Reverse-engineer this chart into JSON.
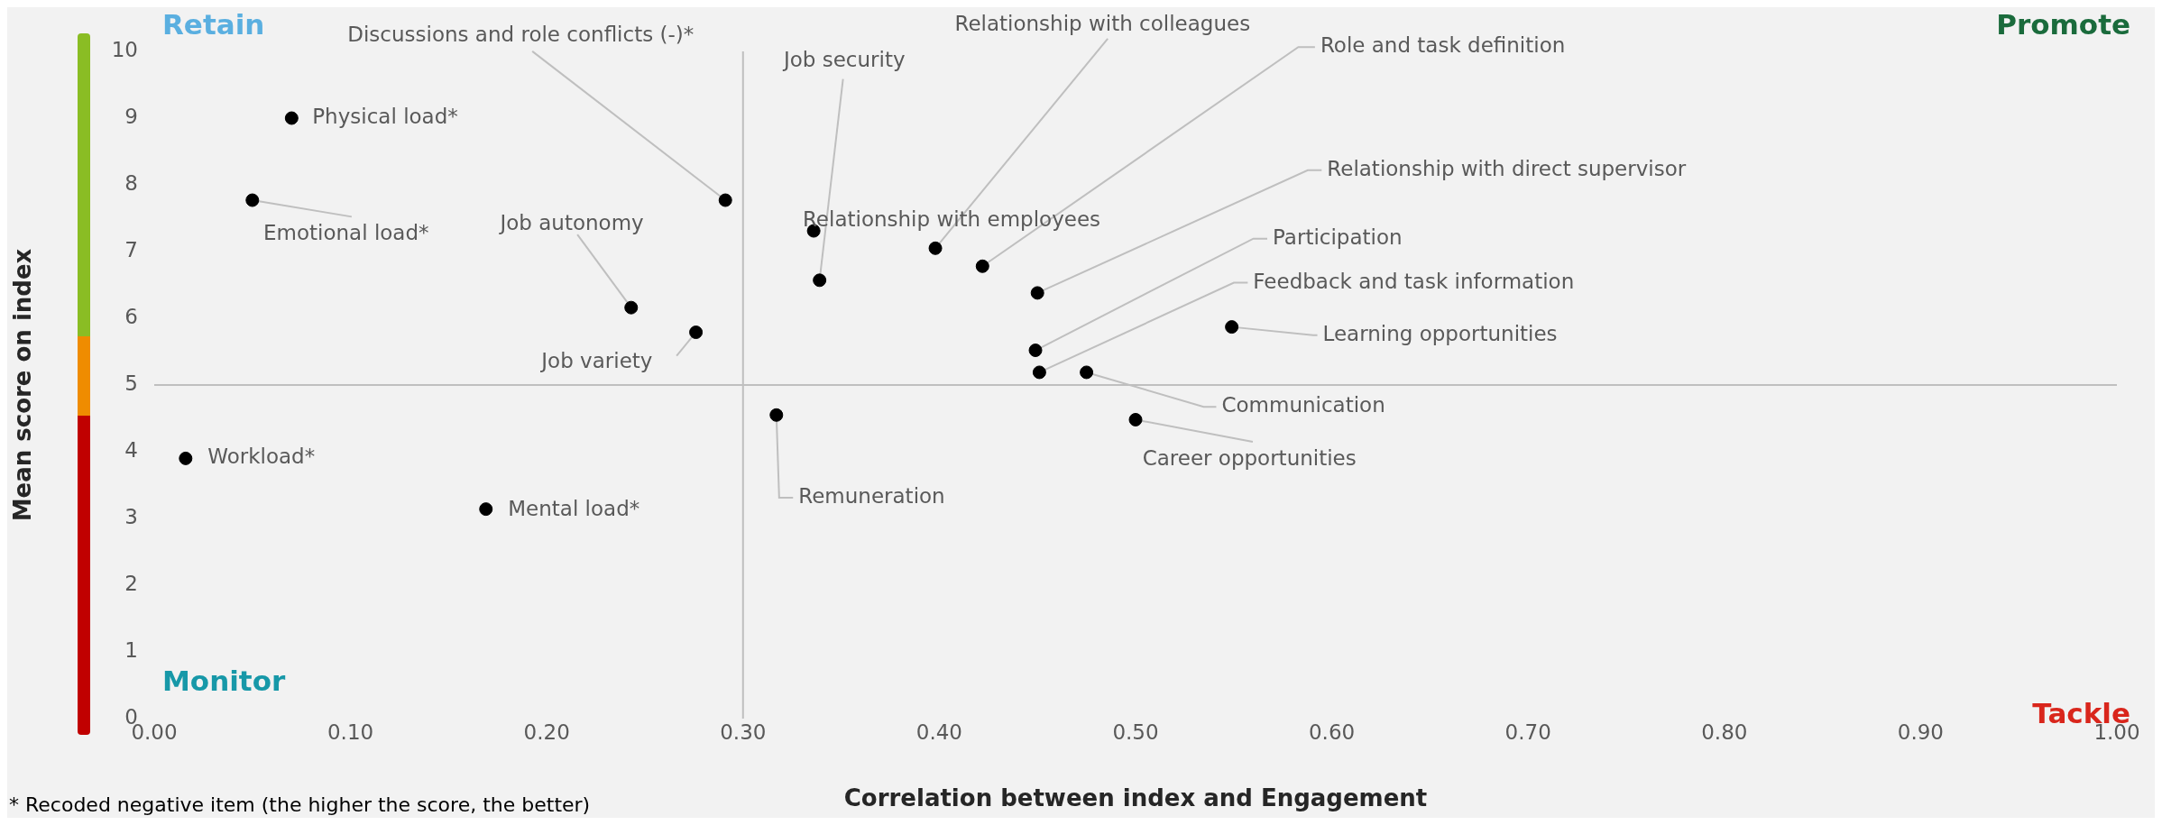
{
  "chart_data": {
    "type": "scatter",
    "xlabel": "Correlation between index and Engagement",
    "ylabel": "Mean score on index",
    "x": [
      0.07,
      0.05,
      0.291,
      0.243,
      0.276,
      0.016,
      0.169,
      0.317,
      0.336,
      0.339,
      0.398,
      0.422,
      0.45,
      0.449,
      0.451,
      0.475,
      0.5,
      0.549
    ],
    "series": [
      {
        "color": "#000000",
        "values": [
          9.0,
          7.77,
          7.77,
          6.16,
          5.79,
          3.9,
          3.14,
          4.55,
          7.31,
          6.57,
          7.05,
          6.78,
          6.38,
          5.52,
          5.19,
          5.19,
          4.48,
          5.87
        ]
      }
    ],
    "marker": "circle",
    "grid": false,
    "legend": false,
    "xlim": [
      0,
      1
    ],
    "xticks": [
      {
        "value": 0,
        "label": "0.00"
      },
      {
        "value": 0.1,
        "label": "0.10"
      },
      {
        "value": 0.2,
        "label": "0.20"
      },
      {
        "value": 0.3,
        "label": "0.30"
      },
      {
        "value": 0.4,
        "label": "0.40"
      },
      {
        "value": 0.5,
        "label": "0.50"
      },
      {
        "value": 0.6,
        "label": "0.60"
      },
      {
        "value": 0.7,
        "label": "0.70"
      },
      {
        "value": 0.8,
        "label": "0.80"
      },
      {
        "value": 0.9,
        "label": "0.90"
      },
      {
        "value": 1,
        "label": "1.00"
      }
    ],
    "ylim": [
      0,
      10
    ],
    "yticks": [
      0,
      1,
      2,
      3,
      4,
      5,
      6,
      7,
      8,
      9,
      10
    ],
    "ref_lines": [
      {
        "axis": "x",
        "value": 0.3,
        "color": "#bfbfbf"
      },
      {
        "axis": "y",
        "value": 5,
        "color": "#bfbfbf"
      }
    ],
    "annotations": [
      "Retain",
      "Promote",
      "Monitor",
      "Tackle",
      "* Recoded negative item (the higher the score, the better)",
      {
        "text": "Physical load*",
        "x": 0.07,
        "y": 9.0
      },
      {
        "text": "Emotional load*",
        "x": 0.05,
        "y": 7.77
      },
      {
        "text": "Discussions and role conflicts (-)*",
        "x": 0.291,
        "y": 7.77
      },
      {
        "text": "Job autonomy",
        "x": 0.243,
        "y": 6.16
      },
      {
        "text": "Job variety",
        "x": 0.276,
        "y": 5.79
      },
      {
        "text": "Workload*",
        "x": 0.016,
        "y": 3.9
      },
      {
        "text": "Mental load*",
        "x": 0.169,
        "y": 3.14
      },
      {
        "text": "Remuneration",
        "x": 0.317,
        "y": 4.55
      },
      {
        "text": "Relationship with employees",
        "x": 0.336,
        "y": 7.31
      },
      {
        "text": "Job security",
        "x": 0.339,
        "y": 6.57
      },
      {
        "text": "Relationship with colleagues",
        "x": 0.398,
        "y": 7.05
      },
      {
        "text": "Role and task definition",
        "x": 0.422,
        "y": 6.78
      },
      {
        "text": "Relationship with direct supervisor",
        "x": 0.45,
        "y": 6.38
      },
      {
        "text": "Participation",
        "x": 0.449,
        "y": 5.52
      },
      {
        "text": "Feedback and task information",
        "x": 0.451,
        "y": 5.19
      },
      {
        "text": "Communication",
        "x": 0.475,
        "y": 5.19
      },
      {
        "text": "Career opportunities",
        "x": 0.5,
        "y": 4.48
      },
      {
        "text": "Learning opportunities",
        "x": 0.549,
        "y": 5.87
      }
    ]
  }
}
